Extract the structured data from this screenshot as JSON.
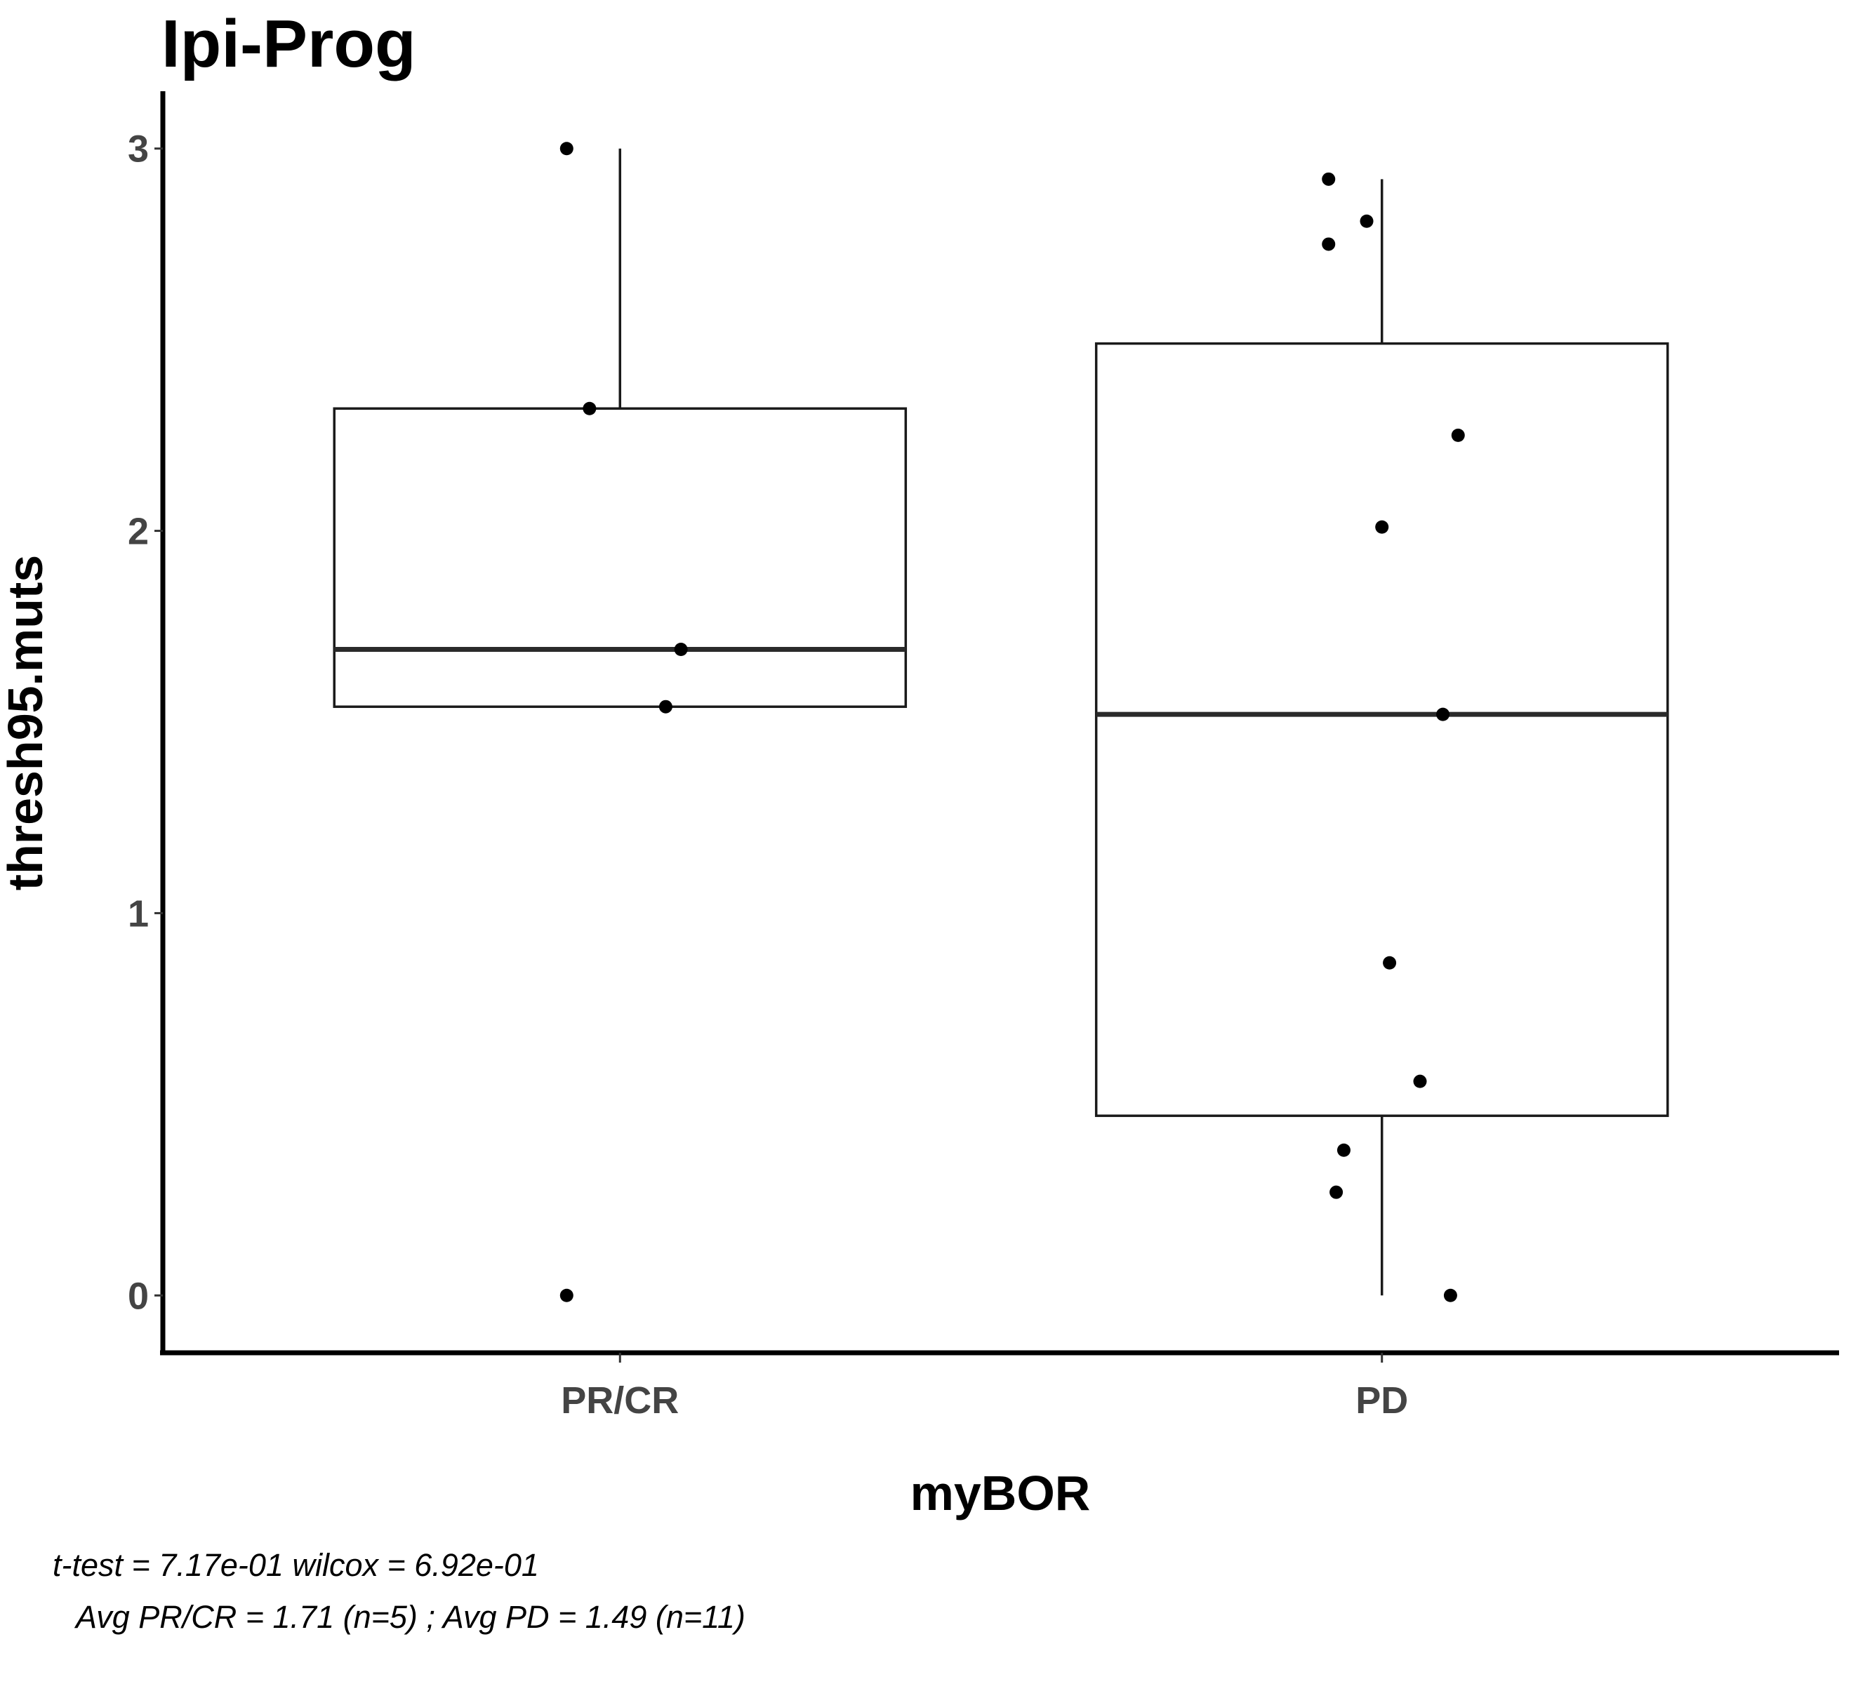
{
  "chart_data": {
    "type": "box",
    "title": "Ipi-Prog",
    "xlabel": "myBOR",
    "ylabel": "thresh95.muts",
    "categories": [
      "PR/CR",
      "PD"
    ],
    "y_ticks": [
      0,
      1,
      2,
      3
    ],
    "ylim": [
      -0.15,
      3.15
    ],
    "grid": false,
    "boxes": [
      {
        "category": "PR/CR",
        "q1": 1.54,
        "median": 1.69,
        "q3": 2.32,
        "whisker_low": 1.54,
        "whisker_high": 3.0
      },
      {
        "category": "PD",
        "q1": 0.47,
        "median": 1.52,
        "q3": 2.49,
        "whisker_low": 0.0,
        "whisker_high": 2.92
      }
    ],
    "points": [
      {
        "category": "PR/CR",
        "x_offset": -0.07,
        "y": 3.0
      },
      {
        "category": "PR/CR",
        "x_offset": -0.04,
        "y": 2.32
      },
      {
        "category": "PR/CR",
        "x_offset": 0.08,
        "y": 1.69
      },
      {
        "category": "PR/CR",
        "x_offset": 0.06,
        "y": 1.54
      },
      {
        "category": "PR/CR",
        "x_offset": -0.07,
        "y": 0.0
      },
      {
        "category": "PD",
        "x_offset": -0.07,
        "y": 2.92
      },
      {
        "category": "PD",
        "x_offset": -0.02,
        "y": 2.81
      },
      {
        "category": "PD",
        "x_offset": -0.07,
        "y": 2.75
      },
      {
        "category": "PD",
        "x_offset": 0.1,
        "y": 2.25
      },
      {
        "category": "PD",
        "x_offset": 0.0,
        "y": 2.01
      },
      {
        "category": "PD",
        "x_offset": 0.08,
        "y": 1.52
      },
      {
        "category": "PD",
        "x_offset": 0.01,
        "y": 0.87
      },
      {
        "category": "PD",
        "x_offset": 0.05,
        "y": 0.56
      },
      {
        "category": "PD",
        "x_offset": -0.05,
        "y": 0.38
      },
      {
        "category": "PD",
        "x_offset": -0.06,
        "y": 0.27
      },
      {
        "category": "PD",
        "x_offset": 0.09,
        "y": 0.0
      }
    ]
  },
  "caption": {
    "line1": "t-test = 7.17e-01 wilcox = 6.92e-01",
    "line2": "Avg PR/CR = 1.71 (n=5) ;  Avg PD = 1.49 (n=11)"
  }
}
